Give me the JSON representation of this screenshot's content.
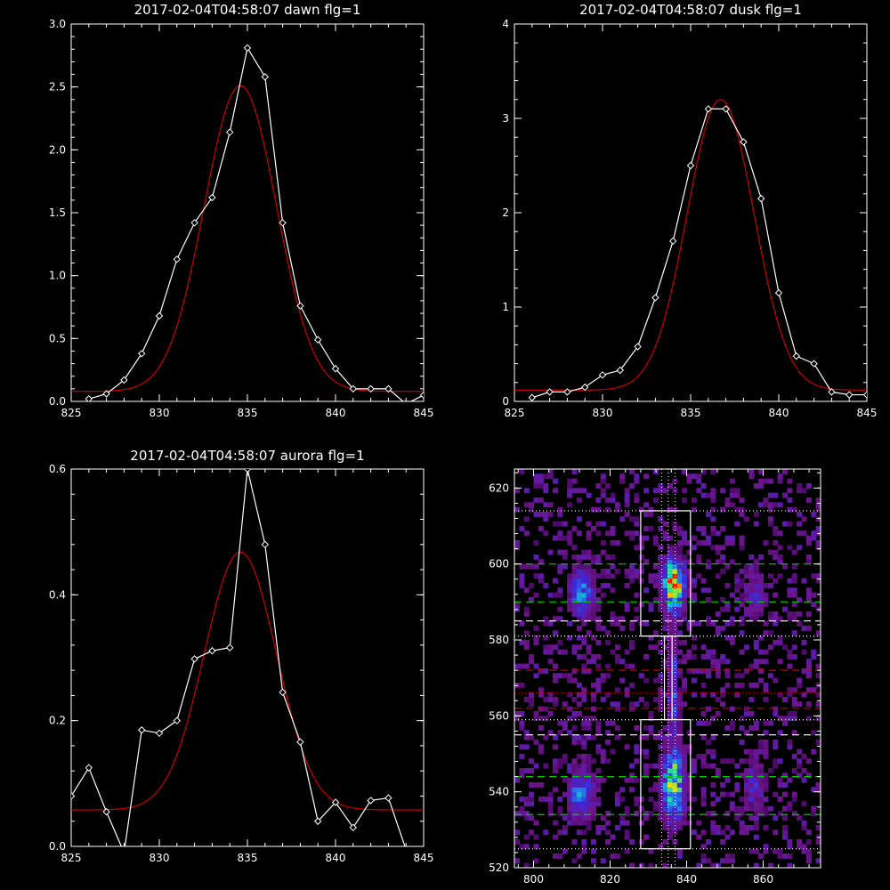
{
  "colors": {
    "background": "#000000",
    "axes": "#ffffff",
    "data": "#ffffff",
    "fit": "#cc0000"
  },
  "chart_data": [
    {
      "type": "line",
      "title": "2017-02-04T04:58:07 dawn flg=1",
      "xlim": [
        825,
        845
      ],
      "ylim": [
        0,
        3.0
      ],
      "xticks": [
        825,
        830,
        835,
        840,
        845
      ],
      "yticks": [
        0.0,
        0.5,
        1.0,
        1.5,
        2.0,
        2.5,
        3.0
      ],
      "ytick_labels": [
        "0.0",
        "0.5",
        "1.0",
        "1.5",
        "2.0",
        "2.5",
        "3.0"
      ],
      "series": [
        {
          "marker": "diamond",
          "color": "#ffffff",
          "x": [
            826,
            827,
            828,
            829,
            830,
            831,
            832,
            833,
            834,
            835,
            836,
            837,
            838,
            839,
            840,
            841,
            842,
            843,
            844,
            845
          ],
          "y": [
            0.02,
            0.06,
            0.17,
            0.38,
            0.68,
            1.13,
            1.42,
            1.62,
            2.14,
            2.81,
            2.58,
            1.42,
            0.76,
            0.49,
            0.26,
            0.1,
            0.1,
            0.1,
            -0.02,
            0.05
          ]
        },
        {
          "color": "#cc0000",
          "gaussian": {
            "amp": 2.43,
            "mu": 834.6,
            "sigma": 2.05,
            "base": 0.08
          }
        }
      ]
    },
    {
      "type": "line",
      "title": "2017-02-04T04:58:07 dusk flg=1",
      "xlim": [
        825,
        845
      ],
      "ylim": [
        0,
        4
      ],
      "xticks": [
        825,
        830,
        835,
        840,
        845
      ],
      "yticks": [
        0,
        1,
        2,
        3,
        4
      ],
      "ytick_labels": [
        "0",
        "1",
        "2",
        "3",
        "4"
      ],
      "series": [
        {
          "marker": "diamond",
          "color": "#ffffff",
          "x": [
            826,
            827,
            828,
            829,
            830,
            831,
            832,
            833,
            834,
            835,
            836,
            837,
            838,
            839,
            840,
            841,
            842,
            843,
            844,
            845
          ],
          "y": [
            0.04,
            0.1,
            0.1,
            0.15,
            0.28,
            0.33,
            0.58,
            1.1,
            1.7,
            2.5,
            3.1,
            3.1,
            2.75,
            2.15,
            1.15,
            0.48,
            0.4,
            0.1,
            0.07,
            0.07
          ]
        },
        {
          "color": "#cc0000",
          "gaussian": {
            "amp": 3.08,
            "mu": 836.7,
            "sigma": 1.9,
            "base": 0.12
          }
        }
      ]
    },
    {
      "type": "line",
      "title": "2017-02-04T04:58:07 aurora flg=1",
      "xlim": [
        825,
        845
      ],
      "ylim": [
        0,
        0.6
      ],
      "xticks": [
        825,
        830,
        835,
        840,
        845
      ],
      "yticks": [
        0.0,
        0.2,
        0.4,
        0.6
      ],
      "ytick_labels": [
        "0.0",
        "0.2",
        "0.4",
        "0.6"
      ],
      "series": [
        {
          "marker": "diamond",
          "color": "#ffffff",
          "x": [
            825,
            826,
            827,
            828,
            829,
            830,
            831,
            832,
            833,
            834,
            835,
            836,
            837,
            838,
            839,
            840,
            841,
            842,
            843,
            844
          ],
          "y": [
            0.08,
            0.125,
            0.055,
            -0.01,
            0.185,
            0.18,
            0.2,
            0.298,
            0.311,
            0.316,
            0.6,
            0.48,
            0.245,
            0.166,
            0.04,
            0.07,
            0.03,
            0.073,
            0.077,
            -0.005
          ]
        },
        {
          "color": "#cc0000",
          "gaussian": {
            "amp": 0.41,
            "mu": 834.6,
            "sigma": 2.05,
            "base": 0.058
          }
        }
      ]
    },
    {
      "type": "heatmap",
      "xlim": [
        795,
        875
      ],
      "ylim": [
        520,
        625
      ],
      "xticks": [
        800,
        820,
        840,
        860
      ],
      "yticks": [
        520,
        540,
        560,
        580,
        600,
        620
      ],
      "bins": {
        "dx": 1.25,
        "dy": 1.25
      },
      "blobs": [
        {
          "x": 812,
          "y": 592,
          "sx": 2.4,
          "sy": 5,
          "amp": 0.55
        },
        {
          "x": 836,
          "y": 594,
          "sx": 2.2,
          "sy": 5,
          "amp": 1.0
        },
        {
          "x": 857,
          "y": 592,
          "sx": 2.2,
          "sy": 5,
          "amp": 0.35
        },
        {
          "x": 812,
          "y": 539,
          "sx": 2.4,
          "sy": 5,
          "amp": 0.6
        },
        {
          "x": 836,
          "y": 541,
          "sx": 2.2,
          "sy": 7,
          "amp": 0.82
        },
        {
          "x": 857,
          "y": 541,
          "sx": 2.2,
          "sy": 5,
          "amp": 0.38
        },
        {
          "x": 836,
          "y": 567,
          "sx": 1.0,
          "sy": 10,
          "amp": 0.45
        }
      ],
      "boxes": [
        {
          "x0": 828,
          "x1": 841,
          "y0": 581,
          "y1": 614
        },
        {
          "x0": 828,
          "x1": 841,
          "y0": 525,
          "y1": 559
        },
        {
          "x0": 834.2,
          "x1": 836.2,
          "y0": 559,
          "y1": 581
        }
      ],
      "vlines_dotted": [
        833.5,
        835.2,
        837
      ],
      "hlines": [
        {
          "y": 614,
          "color": "#ffffff",
          "style": "dotted"
        },
        {
          "y": 600,
          "color": "#00cc00",
          "style": "dashed"
        },
        {
          "y": 590,
          "color": "#00cc00",
          "style": "dashed"
        },
        {
          "y": 585,
          "color": "#ffffff",
          "style": "dashed"
        },
        {
          "y": 581,
          "color": "#ffffff",
          "style": "dotted"
        },
        {
          "y": 572,
          "color": "#cc0000",
          "style": "dashed"
        },
        {
          "y": 566,
          "color": "#cc0000",
          "style": "dotted"
        },
        {
          "y": 562,
          "color": "#cc0000",
          "style": "dashed"
        },
        {
          "y": 559,
          "color": "#ffffff",
          "style": "dotted"
        },
        {
          "y": 555,
          "color": "#ffffff",
          "style": "dashed"
        },
        {
          "y": 544,
          "color": "#00cc00",
          "style": "dashed"
        },
        {
          "y": 534,
          "color": "#00cc00",
          "style": "dashed"
        },
        {
          "y": 525,
          "color": "#ffffff",
          "style": "dotted"
        }
      ]
    }
  ]
}
